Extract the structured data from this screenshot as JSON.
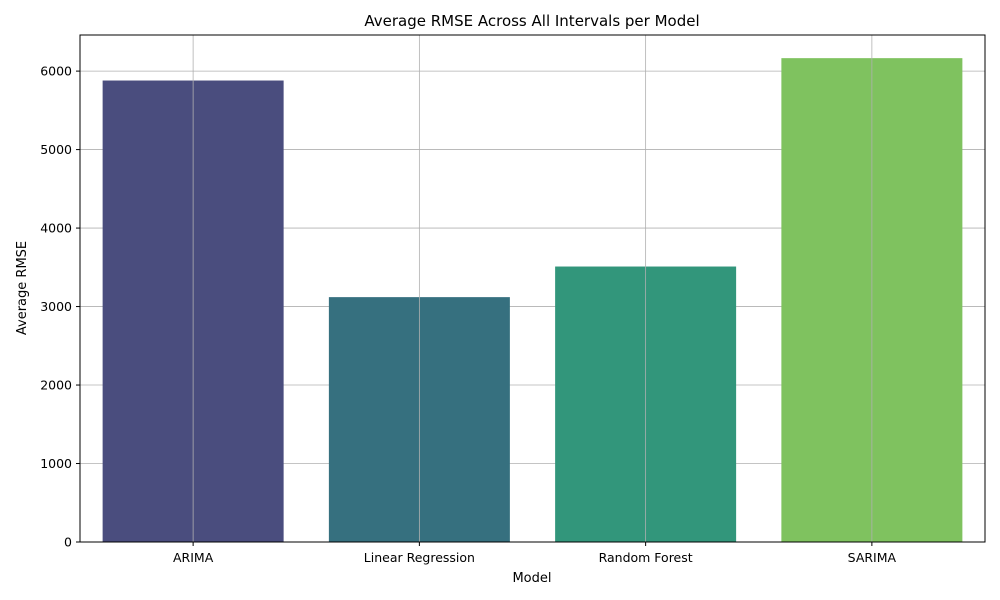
{
  "chart_data": {
    "type": "bar",
    "title": "Average RMSE Across All Intervals per Model",
    "xlabel": "Model",
    "ylabel": "Average RMSE",
    "categories": [
      "ARIMA",
      "Linear Regression",
      "Random Forest",
      "SARIMA"
    ],
    "values": [
      5880,
      3120,
      3510,
      6165
    ],
    "colors": [
      "#4a4d7e",
      "#36707f",
      "#32967b",
      "#7fc25f"
    ],
    "ylim": [
      0,
      6460
    ],
    "yticks": [
      0,
      1000,
      2000,
      3000,
      4000,
      5000,
      6000
    ],
    "grid": true,
    "grid_color": "#b0b0b0"
  }
}
